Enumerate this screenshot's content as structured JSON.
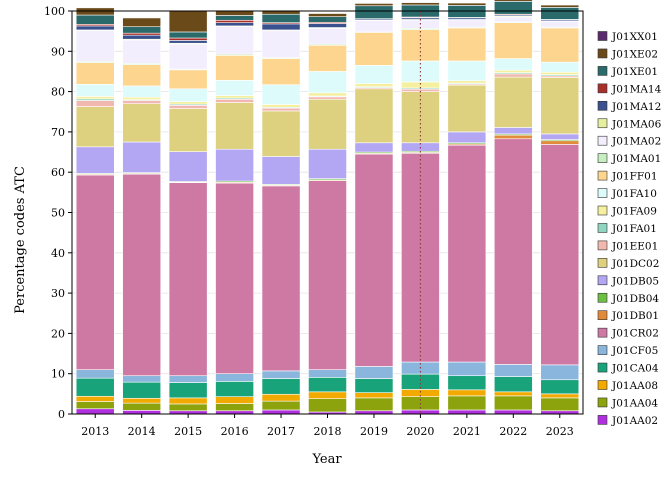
{
  "chart_data": {
    "type": "bar",
    "stacked": true,
    "xlabel": "Year",
    "ylabel": "Percentage codes ATC",
    "ylim": [
      0,
      100
    ],
    "yticks": [
      0,
      10,
      20,
      30,
      40,
      50,
      60,
      70,
      80,
      90,
      100
    ],
    "grid": "horizontal",
    "legend_position": "right",
    "reference_line": {
      "category": "2020",
      "style": "dotted",
      "color": "#8B3A3A"
    },
    "categories": [
      "2013",
      "2014",
      "2015",
      "2016",
      "2017",
      "2018",
      "2019",
      "2020",
      "2021",
      "2022",
      "2023"
    ],
    "series": [
      {
        "name": "J01AA02",
        "color": "#B030E0",
        "values": [
          1.3,
          0.9,
          0.8,
          0.8,
          1.0,
          0.5,
          0.8,
          1.0,
          1.0,
          1.0,
          0.8
        ]
      },
      {
        "name": "J01AA04",
        "color": "#8DA30E",
        "values": [
          1.8,
          1.8,
          1.7,
          1.8,
          2.2,
          3.3,
          3.2,
          3.3,
          3.5,
          3.5,
          3.2
        ]
      },
      {
        "name": "J01AA08",
        "color": "#F2A900",
        "values": [
          1.3,
          1.2,
          1.5,
          1.7,
          1.7,
          1.7,
          1.3,
          1.8,
          1.5,
          1.0,
          1.0
        ]
      },
      {
        "name": "J01CA04",
        "color": "#19A37A",
        "values": [
          4.5,
          4.0,
          3.8,
          3.8,
          3.9,
          3.6,
          3.5,
          3.8,
          3.5,
          3.8,
          3.5
        ]
      },
      {
        "name": "J01CF05",
        "color": "#8AB6DE",
        "values": [
          2.1,
          1.6,
          1.7,
          1.9,
          1.9,
          1.9,
          3.0,
          3.0,
          3.4,
          3.0,
          3.7
        ]
      },
      {
        "name": "J01CR02",
        "color": "#CE78A4",
        "values": [
          48.3,
          50.0,
          47.9,
          47.3,
          45.9,
          46.9,
          52.7,
          51.8,
          53.8,
          56.0,
          54.7
        ]
      },
      {
        "name": "J01DB01",
        "color": "#E08A3A",
        "values": [
          0.2,
          0.2,
          0.1,
          0.2,
          0.2,
          0.2,
          0.2,
          0.2,
          0.3,
          0.9,
          0.9
        ]
      },
      {
        "name": "J01DB04",
        "color": "#6DBE45",
        "values": [
          0.2,
          0.2,
          0.2,
          0.3,
          0.2,
          0.3,
          0.3,
          0.3,
          0.3,
          0.3,
          0.3
        ]
      },
      {
        "name": "J01DB05",
        "color": "#B3A6F2",
        "values": [
          6.6,
          7.6,
          7.4,
          7.9,
          6.9,
          7.3,
          2.3,
          2.1,
          2.7,
          1.6,
          1.4
        ]
      },
      {
        "name": "J01DC02",
        "color": "#DDD07E",
        "values": [
          10.0,
          9.5,
          10.7,
          11.6,
          11.3,
          12.4,
          13.4,
          12.7,
          11.6,
          12.5,
          14.0
        ]
      },
      {
        "name": "J01EE01",
        "color": "#F2B8B0",
        "values": [
          1.5,
          0.8,
          0.8,
          0.8,
          0.7,
          0.6,
          0.3,
          0.6,
          0.3,
          0.8,
          0.4
        ]
      },
      {
        "name": "J01FA01",
        "color": "#8FD5C0",
        "values": [
          0.4,
          0.2,
          0.3,
          0.3,
          0.2,
          0.2,
          0.2,
          0.3,
          0.2,
          0.3,
          0.3
        ]
      },
      {
        "name": "J01FA09",
        "color": "#F5F0A0",
        "values": [
          0.6,
          0.6,
          0.6,
          0.6,
          0.7,
          0.8,
          0.8,
          1.5,
          0.6,
          0.6,
          0.6
        ]
      },
      {
        "name": "J01FA10",
        "color": "#DDFBFB",
        "values": [
          3.0,
          2.8,
          3.2,
          3.8,
          4.9,
          5.3,
          4.5,
          5.2,
          4.9,
          2.9,
          2.5
        ]
      },
      {
        "name": "J01FF01",
        "color": "#FDD58E",
        "values": [
          5.4,
          5.3,
          4.7,
          6.2,
          6.5,
          6.5,
          8.2,
          7.8,
          8.2,
          8.9,
          8.5
        ]
      },
      {
        "name": "J01MA01",
        "color": "#C6EEC0",
        "values": [
          0.3,
          0.3,
          0.2,
          0.3,
          0.2,
          0.3,
          0.1,
          0.3,
          0.2,
          0.2,
          0.2
        ]
      },
      {
        "name": "J01MA02",
        "color": "#F3EEFD",
        "values": [
          7.6,
          5.8,
          6.2,
          6.8,
          6.7,
          3.9,
          2.8,
          2.0,
          1.8,
          1.2,
          1.4
        ]
      },
      {
        "name": "J01MA06",
        "color": "#E6EFA0",
        "values": [
          0.2,
          0.2,
          0.2,
          0.2,
          0.2,
          0.2,
          0.1,
          0.2,
          0.1,
          0.2,
          0.1
        ]
      },
      {
        "name": "J01MA12",
        "color": "#3A5190",
        "values": [
          1.0,
          1.0,
          0.7,
          0.8,
          1.5,
          1.0,
          0.3,
          0.4,
          0.4,
          0.3,
          0.3
        ]
      },
      {
        "name": "J01MA14",
        "color": "#A8302A",
        "values": [
          0.4,
          0.5,
          0.6,
          0.6,
          0.3,
          0.3,
          0.1,
          0.2,
          0.1,
          0.2,
          0.1
        ]
      },
      {
        "name": "J01XE01",
        "color": "#2A6A6A",
        "values": [
          2.3,
          1.6,
          1.5,
          1.2,
          2.1,
          1.4,
          3.2,
          3.0,
          3.0,
          3.2,
          3.0
        ]
      },
      {
        "name": "J01XE02",
        "color": "#6B4A1A",
        "values": [
          1.8,
          2.2,
          5.2,
          1.2,
          1.0,
          0.8,
          0.6,
          0.6,
          0.6,
          0.4,
          0.6
        ]
      },
      {
        "name": "J01XX01",
        "color": "#5A2C6E",
        "values": [
          0.1,
          0.1,
          0.1,
          0.1,
          0.1,
          0.1,
          0.1,
          0.1,
          0.1,
          0.1,
          0.1
        ]
      }
    ]
  }
}
